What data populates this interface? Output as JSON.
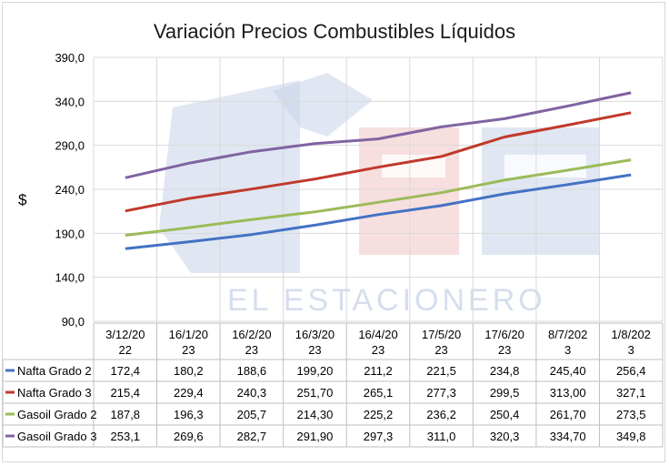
{
  "chart_data": {
    "type": "line",
    "title": "Variación Precios Combustibles Líquidos",
    "ylabel": "$",
    "xlabel": "",
    "ylim": [
      90,
      390
    ],
    "yticks": [
      "390,0",
      "340,0",
      "290,0",
      "240,0",
      "190,0",
      "140,0",
      "90,0"
    ],
    "categories": [
      [
        "3/12/20",
        "22"
      ],
      [
        "16/1/20",
        "23"
      ],
      [
        "16/2/20",
        "23"
      ],
      [
        "16/3/20",
        "23"
      ],
      [
        "16/4/20",
        "23"
      ],
      [
        "17/5/20",
        "23"
      ],
      [
        "17/6/20",
        "23"
      ],
      [
        "8/7/202",
        "3"
      ],
      [
        "1/8/202",
        "3"
      ]
    ],
    "grid": true,
    "legend": "data-table",
    "series": [
      {
        "name": "Nafta Grado 2",
        "color": "#4472c4",
        "values": [
          172.4,
          180.2,
          188.6,
          199.2,
          211.2,
          221.5,
          234.8,
          245.4,
          256.4
        ],
        "labels": [
          "172,4",
          "180,2",
          "188,6",
          "199,20",
          "211,2",
          "221,5",
          "234,8",
          "245,40",
          "256,4"
        ]
      },
      {
        "name": "Nafta Grado 3",
        "color": "#c0392b",
        "values": [
          215.4,
          229.4,
          240.3,
          251.7,
          265.1,
          277.3,
          299.5,
          313.0,
          327.1
        ],
        "labels": [
          "215,4",
          "229,4",
          "240,3",
          "251,70",
          "265,1",
          "277,3",
          "299,5",
          "313,00",
          "327,1"
        ]
      },
      {
        "name": "Gasoil Grado 2",
        "color": "#9bbb59",
        "values": [
          187.8,
          196.3,
          205.7,
          214.3,
          225.2,
          236.2,
          250.4,
          261.7,
          273.5
        ],
        "labels": [
          "187,8",
          "196,3",
          "205,7",
          "214,30",
          "225,2",
          "236,2",
          "250,4",
          "261,70",
          "273,5"
        ]
      },
      {
        "name": "Gasoil Grado 3",
        "color": "#8064a2",
        "values": [
          253.1,
          269.6,
          282.7,
          291.9,
          297.3,
          311.0,
          320.3,
          334.7,
          349.8
        ],
        "labels": [
          "253,1",
          "269,6",
          "282,7",
          "291,90",
          "297,3",
          "311,0",
          "320,3",
          "334,70",
          "349,8"
        ]
      }
    ]
  },
  "watermark": {
    "text": "EL ESTACIONERO",
    "colors": [
      "#c7d3e8",
      "#f2c9c9"
    ]
  }
}
